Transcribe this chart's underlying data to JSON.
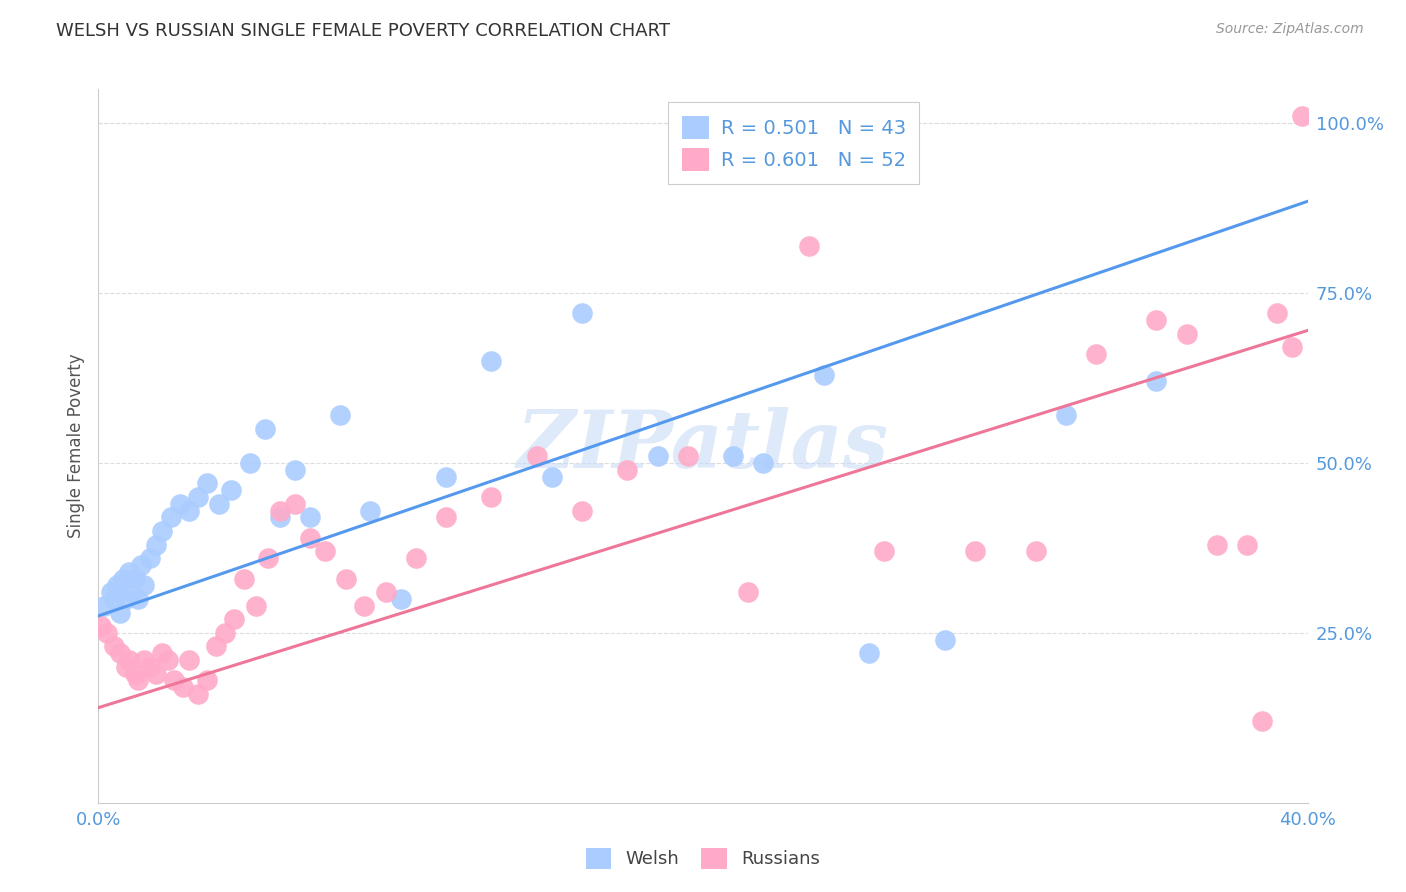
{
  "title": "WELSH VS RUSSIAN SINGLE FEMALE POVERTY CORRELATION CHART",
  "source": "Source: ZipAtlas.com",
  "ylabel": "Single Female Poverty",
  "xlim": [
    0.0,
    0.4
  ],
  "ylim": [
    0.0,
    1.05
  ],
  "ytick_vals": [
    0.25,
    0.5,
    0.75,
    1.0
  ],
  "ytick_labels": [
    "25.0%",
    "50.0%",
    "75.0%",
    "100.0%"
  ],
  "xtick_vals": [
    0.0,
    0.08,
    0.16,
    0.24,
    0.32,
    0.4
  ],
  "xtick_labels": [
    "0.0%",
    "",
    "",
    "",
    "",
    "40.0%"
  ],
  "welsh_color": "#aaccff",
  "russian_color": "#ffaac8",
  "welsh_R": 0.501,
  "welsh_N": 43,
  "russian_R": 0.601,
  "russian_N": 52,
  "welsh_line_color": "#5599ee",
  "russian_line_color": "#ee7799",
  "watermark": "ZIPatlas",
  "background_color": "#ffffff",
  "tick_color": "#5599dd",
  "grid_color": "#dddddd",
  "welsh_line_x0": 0.0,
  "welsh_line_y0": 0.275,
  "welsh_line_x1": 0.4,
  "welsh_line_y1": 0.885,
  "russian_line_x0": 0.0,
  "russian_line_y0": 0.14,
  "russian_line_x1": 0.4,
  "russian_line_y1": 0.695,
  "welsh_scatter_x": [
    0.002,
    0.004,
    0.005,
    0.006,
    0.007,
    0.008,
    0.009,
    0.01,
    0.011,
    0.012,
    0.013,
    0.014,
    0.015,
    0.017,
    0.019,
    0.021,
    0.024,
    0.027,
    0.03,
    0.033,
    0.036,
    0.04,
    0.044,
    0.05,
    0.055,
    0.06,
    0.065,
    0.07,
    0.08,
    0.09,
    0.1,
    0.115,
    0.13,
    0.15,
    0.16,
    0.185,
    0.21,
    0.22,
    0.24,
    0.255,
    0.28,
    0.32,
    0.35
  ],
  "welsh_scatter_y": [
    0.29,
    0.31,
    0.3,
    0.32,
    0.28,
    0.33,
    0.3,
    0.34,
    0.31,
    0.33,
    0.3,
    0.35,
    0.32,
    0.36,
    0.38,
    0.4,
    0.42,
    0.44,
    0.43,
    0.45,
    0.47,
    0.44,
    0.46,
    0.5,
    0.55,
    0.42,
    0.49,
    0.42,
    0.57,
    0.43,
    0.3,
    0.48,
    0.65,
    0.48,
    0.72,
    0.51,
    0.51,
    0.5,
    0.63,
    0.22,
    0.24,
    0.57,
    0.62
  ],
  "russian_scatter_x": [
    0.001,
    0.003,
    0.005,
    0.007,
    0.009,
    0.01,
    0.012,
    0.013,
    0.015,
    0.017,
    0.019,
    0.021,
    0.023,
    0.025,
    0.028,
    0.03,
    0.033,
    0.036,
    0.039,
    0.042,
    0.045,
    0.048,
    0.052,
    0.056,
    0.06,
    0.065,
    0.07,
    0.075,
    0.082,
    0.088,
    0.095,
    0.105,
    0.115,
    0.13,
    0.145,
    0.16,
    0.175,
    0.195,
    0.215,
    0.235,
    0.26,
    0.29,
    0.31,
    0.33,
    0.35,
    0.36,
    0.37,
    0.38,
    0.385,
    0.39,
    0.395,
    0.398
  ],
  "russian_scatter_y": [
    0.26,
    0.25,
    0.23,
    0.22,
    0.2,
    0.21,
    0.19,
    0.18,
    0.21,
    0.2,
    0.19,
    0.22,
    0.21,
    0.18,
    0.17,
    0.21,
    0.16,
    0.18,
    0.23,
    0.25,
    0.27,
    0.33,
    0.29,
    0.36,
    0.43,
    0.44,
    0.39,
    0.37,
    0.33,
    0.29,
    0.31,
    0.36,
    0.42,
    0.45,
    0.51,
    0.43,
    0.49,
    0.51,
    0.31,
    0.82,
    0.37,
    0.37,
    0.37,
    0.66,
    0.71,
    0.69,
    0.38,
    0.38,
    0.12,
    0.72,
    0.67,
    1.01
  ]
}
